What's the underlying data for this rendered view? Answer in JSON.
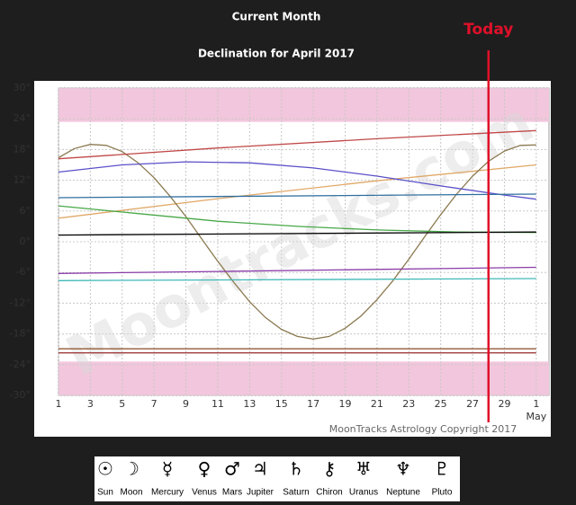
{
  "chart_data": {
    "type": "line",
    "title": "Current Month",
    "subtitle": "Declination for April 2017",
    "copyright": "MoonTracks Astrology Copyright 2017",
    "watermark": "Moontracks.com",
    "today": {
      "label": "Today",
      "x": 28,
      "color": "#e0102a"
    },
    "xlim": [
      1,
      31.8
    ],
    "xticks": [
      1,
      3,
      5,
      7,
      9,
      11,
      13,
      15,
      17,
      19,
      21,
      23,
      25,
      27,
      29,
      {
        "value": 31,
        "label": "1"
      }
    ],
    "x_month_label": {
      "value": 31,
      "label": "May"
    },
    "ylim": [
      -30,
      30
    ],
    "yticks": [
      {
        "value": 30,
        "label": "30°"
      },
      {
        "value": 24,
        "label": "24°"
      },
      {
        "value": 18,
        "label": "18°"
      },
      {
        "value": 12,
        "label": "12°"
      },
      {
        "value": 6,
        "label": "6°"
      },
      {
        "value": 0,
        "label": "0°"
      },
      {
        "value": -6,
        "label": "-6°"
      },
      {
        "value": -12,
        "label": "-12°"
      },
      {
        "value": -18,
        "label": "-18°"
      },
      {
        "value": -24,
        "label": "-24°"
      },
      {
        "value": -30,
        "label": "-30°"
      }
    ],
    "grid": true,
    "bands": [
      {
        "from": 23.4,
        "to": 30,
        "color": "#f2c6dc"
      },
      {
        "from": -30,
        "to": -23.4,
        "color": "#f2c6dc"
      }
    ],
    "series": [
      {
        "name": "Sun",
        "symbol": "☉",
        "color": "#e0a868",
        "x": [
          1,
          11,
          21,
          31
        ],
        "values": [
          4.6,
          8.4,
          11.9,
          15.0
        ]
      },
      {
        "name": "Moon",
        "symbol": "☽",
        "color": "#8b7a50",
        "x": [
          1,
          2,
          3,
          4,
          5,
          6,
          7,
          8,
          9,
          10,
          11,
          12,
          13,
          14,
          15,
          16,
          17,
          18,
          19,
          20,
          21,
          22,
          23,
          24,
          25,
          26,
          27,
          28,
          29,
          30,
          31
        ],
        "values": [
          16.4,
          18.2,
          19.0,
          18.8,
          17.6,
          15.4,
          12.5,
          8.9,
          4.9,
          0.5,
          -3.8,
          -7.9,
          -11.7,
          -14.8,
          -17.1,
          -18.5,
          -19.0,
          -18.5,
          -16.9,
          -14.5,
          -11.3,
          -7.6,
          -3.4,
          1.0,
          5.3,
          9.3,
          12.8,
          15.7,
          17.7,
          18.8,
          18.9
        ]
      },
      {
        "name": "Mercury",
        "symbol": "☿",
        "color": "#5a50c8",
        "x": [
          1,
          5,
          9,
          13,
          17,
          21,
          25,
          29,
          31
        ],
        "values": [
          13.6,
          15.0,
          15.6,
          15.4,
          14.4,
          12.8,
          10.9,
          9.1,
          8.3
        ]
      },
      {
        "name": "Venus",
        "symbol": "♀",
        "color": "#48a848",
        "x": [
          1,
          6,
          11,
          16,
          21,
          26,
          31
        ],
        "values": [
          7.0,
          5.5,
          4.0,
          3.0,
          2.3,
          1.9,
          1.8
        ]
      },
      {
        "name": "Mars",
        "symbol": "♂",
        "color": "#c04848",
        "x": [
          1,
          11,
          21,
          31
        ],
        "values": [
          16.2,
          18.3,
          20.1,
          21.7
        ]
      },
      {
        "name": "Jupiter",
        "symbol": "♃",
        "color": "#8a3ca8",
        "x": [
          1,
          11,
          21,
          31
        ],
        "values": [
          -6.2,
          -5.8,
          -5.4,
          -5.0
        ]
      },
      {
        "name": "Saturn",
        "symbol": "♄",
        "color": "#a03c3c",
        "x": [
          1,
          31
        ],
        "values": [
          -21.7,
          -21.7
        ]
      },
      {
        "name": "Chiron",
        "symbol": "⚷",
        "color": "#000000",
        "x": [
          1,
          31
        ],
        "values": [
          1.3,
          1.9
        ]
      },
      {
        "name": "Uranus",
        "symbol": "♅",
        "color": "#2f6f9f",
        "x": [
          1,
          31
        ],
        "values": [
          8.6,
          9.3
        ]
      },
      {
        "name": "Neptune",
        "symbol": "♆",
        "color": "#40b8b8",
        "x": [
          1,
          31
        ],
        "values": [
          -7.6,
          -7.2
        ]
      },
      {
        "name": "Pluto",
        "symbol": "♇",
        "color": "#8a4a20",
        "x": [
          1,
          31
        ],
        "values": [
          -20.9,
          -20.9
        ]
      }
    ]
  }
}
